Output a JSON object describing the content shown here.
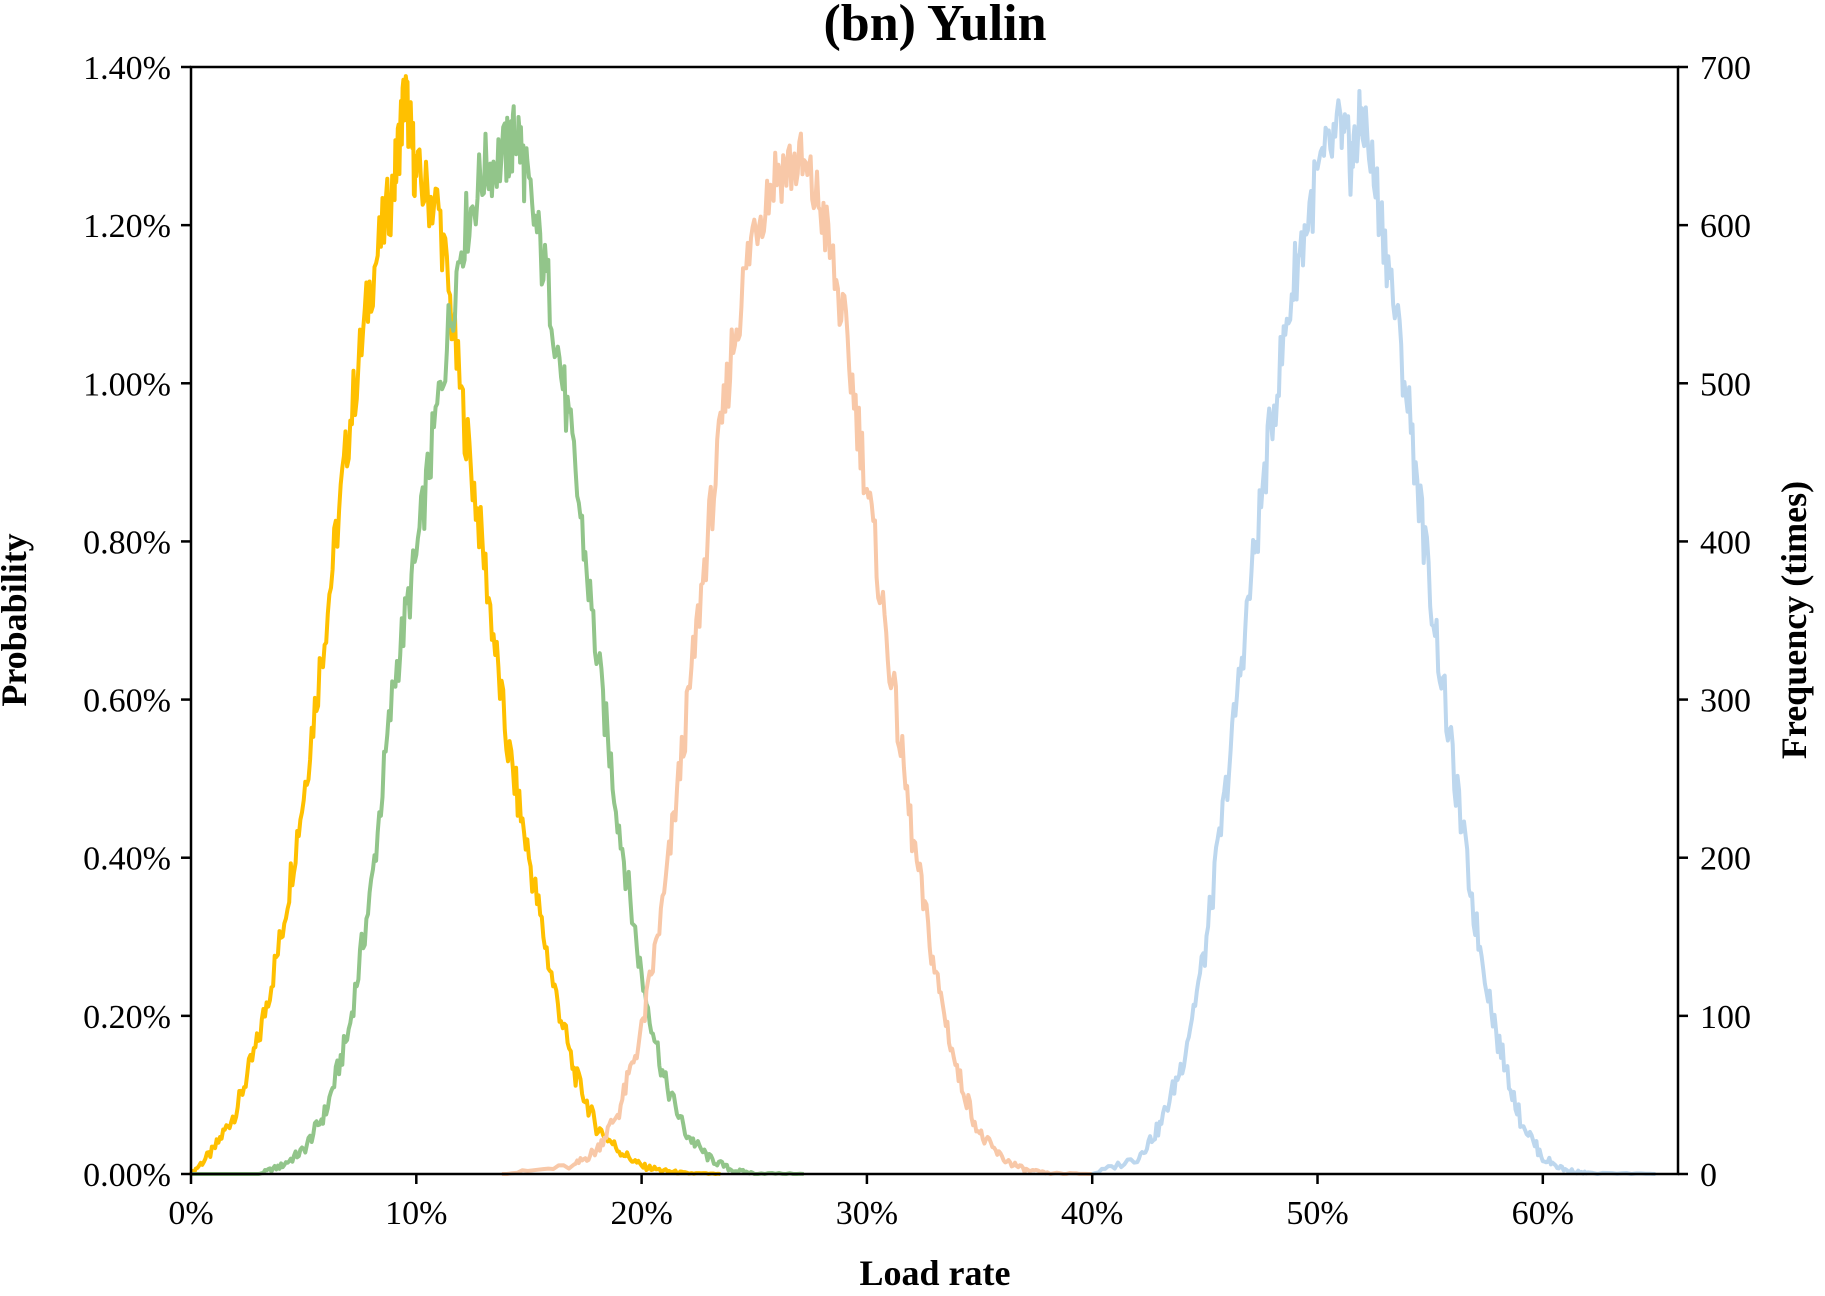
{
  "chart_data": {
    "type": "line",
    "title": "(bn) Yulin",
    "xlabel": "Load rate",
    "ylabel_left": "Probability",
    "ylabel_right": "Frequency (times)",
    "xlim": [
      0,
      0.66
    ],
    "ylim_left": [
      0,
      0.014
    ],
    "ylim_right": [
      0,
      700
    ],
    "x_ticks": [
      0,
      0.1,
      0.2,
      0.3,
      0.4,
      0.5,
      0.6
    ],
    "x_tick_labels": [
      "0%",
      "10%",
      "20%",
      "30%",
      "40%",
      "50%",
      "60%"
    ],
    "y_left_ticks": [
      0,
      0.002,
      0.004,
      0.006,
      0.008,
      0.01,
      0.012,
      0.014
    ],
    "y_left_tick_labels": [
      "0.00%",
      "0.20%",
      "0.40%",
      "0.60%",
      "0.80%",
      "1.00%",
      "1.20%",
      "1.40%"
    ],
    "y_right_ticks": [
      0,
      100,
      200,
      300,
      400,
      500,
      600,
      700
    ],
    "y_right_tick_labels": [
      "0",
      "100",
      "200",
      "300",
      "400",
      "500",
      "600",
      "700"
    ],
    "grid": false,
    "legend": "none",
    "series": [
      {
        "color": "#FFC000",
        "x": [
          0.0,
          0.01,
          0.02,
          0.03,
          0.04,
          0.05,
          0.06,
          0.07,
          0.08,
          0.09,
          0.095,
          0.1,
          0.11,
          0.12,
          0.13,
          0.14,
          0.15,
          0.16,
          0.17,
          0.18,
          0.19,
          0.2,
          0.21,
          0.22,
          0.235
        ],
        "y": [
          0.0,
          0.0003,
          0.0008,
          0.0017,
          0.003,
          0.0048,
          0.007,
          0.0094,
          0.0113,
          0.0125,
          0.0137,
          0.0126,
          0.0122,
          0.0098,
          0.0078,
          0.0055,
          0.004,
          0.0025,
          0.0013,
          0.0006,
          0.0003,
          0.0001,
          4e-05,
          1e-05,
          0.0
        ]
      },
      {
        "color": "#92C58A",
        "x": [
          0.0,
          0.03,
          0.04,
          0.05,
          0.06,
          0.07,
          0.08,
          0.09,
          0.1,
          0.11,
          0.12,
          0.13,
          0.14,
          0.145,
          0.15,
          0.16,
          0.17,
          0.18,
          0.19,
          0.2,
          0.21,
          0.22,
          0.23,
          0.24,
          0.25,
          0.272
        ],
        "y": [
          0.0,
          0.0,
          0.0001,
          0.0003,
          0.0008,
          0.0018,
          0.0036,
          0.0062,
          0.0078,
          0.0098,
          0.0118,
          0.0127,
          0.0129,
          0.0132,
          0.0124,
          0.011,
          0.009,
          0.0066,
          0.0044,
          0.0025,
          0.0012,
          0.0005,
          0.0002,
          5e-05,
          1e-05,
          0.0
        ]
      },
      {
        "color": "#F8C8A8",
        "x": [
          0.138,
          0.17,
          0.18,
          0.19,
          0.2,
          0.21,
          0.22,
          0.23,
          0.24,
          0.25,
          0.26,
          0.27,
          0.28,
          0.29,
          0.3,
          0.31,
          0.32,
          0.33,
          0.34,
          0.35,
          0.36,
          0.37,
          0.38,
          0.4
        ],
        "y": [
          0.0,
          0.0001,
          0.0003,
          0.0008,
          0.0018,
          0.0035,
          0.0058,
          0.0082,
          0.0104,
          0.012,
          0.0127,
          0.0128,
          0.0122,
          0.0107,
          0.0087,
          0.0065,
          0.0043,
          0.0026,
          0.0013,
          0.0005,
          0.0002,
          5e-05,
          1e-05,
          0.0
        ]
      },
      {
        "color": "#BDD7EE",
        "x": [
          0.4,
          0.42,
          0.43,
          0.44,
          0.45,
          0.46,
          0.47,
          0.48,
          0.49,
          0.5,
          0.51,
          0.515,
          0.52,
          0.53,
          0.54,
          0.55,
          0.56,
          0.57,
          0.58,
          0.59,
          0.6,
          0.61,
          0.62,
          0.65
        ],
        "y": [
          0.0,
          0.0002,
          0.0006,
          0.0014,
          0.0028,
          0.005,
          0.0074,
          0.0096,
          0.0114,
          0.0126,
          0.0132,
          0.0128,
          0.0134,
          0.0118,
          0.0098,
          0.0074,
          0.0052,
          0.0032,
          0.0017,
          0.0007,
          0.0002,
          5e-05,
          1e-05,
          0.0
        ]
      }
    ]
  }
}
